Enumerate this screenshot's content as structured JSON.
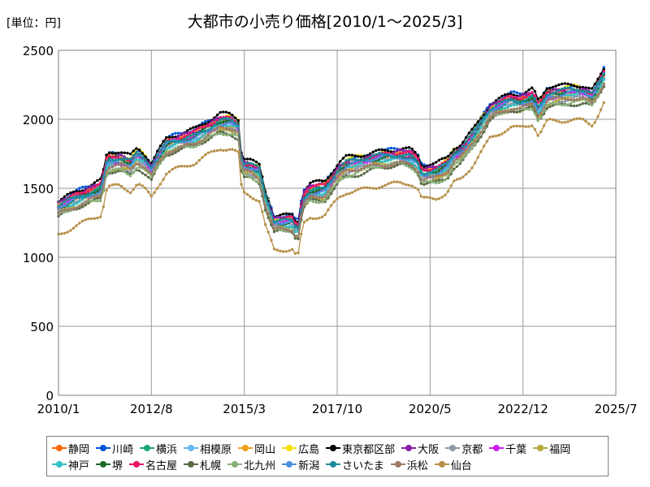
{
  "header": {
    "unit": "[単位：円]",
    "title": "大都市の小売り価格[2010/1～2025/3]"
  },
  "colors": {
    "grid": "#9a9a9a",
    "axis": "#7f7f7f"
  },
  "chart_data": {
    "type": "line",
    "title": "大都市の小売り価格[2010/1～2025/3]",
    "unit_label": "[単位：円]",
    "ylim": [
      0,
      2500
    ],
    "y_ticks": [
      0,
      500,
      1000,
      1500,
      2000,
      2500
    ],
    "x_range": [
      2010.0,
      2025.5
    ],
    "x_ticks": [
      {
        "label": "2010/1",
        "t": 2010.0
      },
      {
        "label": "2012/8",
        "t": 2012.583
      },
      {
        "label": "2015/3",
        "t": 2015.167
      },
      {
        "label": "2017/10",
        "t": 2017.75
      },
      {
        "label": "2020/5",
        "t": 2020.333
      },
      {
        "label": "2022/12",
        "t": 2022.917
      },
      {
        "label": "2025/7",
        "t": 2025.5
      }
    ],
    "grid": true,
    "legend_position": "bottom",
    "base_profile": {
      "x": [
        2010.0,
        2010.4,
        2010.8,
        2011.2,
        2011.35,
        2011.7,
        2012.0,
        2012.2,
        2012.4,
        2012.6,
        2012.7,
        2013.0,
        2013.2,
        2013.5,
        2013.8,
        2014.0,
        2014.5,
        2014.8,
        2015.0,
        2015.1,
        2015.3,
        2015.6,
        2015.75,
        2016.0,
        2016.5,
        2016.65,
        2016.8,
        2017.0,
        2017.4,
        2017.8,
        2018.0,
        2018.5,
        2018.8,
        2019.0,
        2019.5,
        2019.8,
        2020.0,
        2020.1,
        2020.5,
        2020.8,
        2021.0,
        2021.2,
        2021.5,
        2021.8,
        2022.0,
        2022.4,
        2022.6,
        2022.8,
        2023.0,
        2023.2,
        2023.35,
        2023.6,
        2024.0,
        2024.3,
        2024.6,
        2024.85,
        2025.0,
        2025.2
      ],
      "y": [
        1350,
        1400,
        1440,
        1480,
        1680,
        1690,
        1660,
        1720,
        1680,
        1620,
        1680,
        1800,
        1820,
        1840,
        1860,
        1890,
        1960,
        1960,
        1930,
        1650,
        1640,
        1600,
        1420,
        1240,
        1240,
        1170,
        1410,
        1460,
        1470,
        1610,
        1650,
        1680,
        1700,
        1710,
        1720,
        1710,
        1660,
        1590,
        1600,
        1640,
        1720,
        1750,
        1850,
        1970,
        2050,
        2100,
        2120,
        2110,
        2120,
        2140,
        2050,
        2160,
        2170,
        2180,
        2180,
        2150,
        2220,
        2320
      ]
    },
    "series": [
      {
        "name": "静岡",
        "color": "#ff6600",
        "offset": 30
      },
      {
        "name": "川崎",
        "color": "#0055dd",
        "offset": 60
      },
      {
        "name": "横浜",
        "color": "#19a874",
        "offset": 20
      },
      {
        "name": "相模原",
        "color": "#66b8f0",
        "offset": 0
      },
      {
        "name": "岡山",
        "color": "#f0a018",
        "offset": -10
      },
      {
        "name": "広島",
        "color": "#f8e000",
        "offset": 50
      },
      {
        "name": "東京都区部",
        "color": "#000000",
        "offset": 70
      },
      {
        "name": "大阪",
        "color": "#8820a8",
        "offset": 40
      },
      {
        "name": "京都",
        "color": "#8c98a8",
        "offset": -20
      },
      {
        "name": "千葉",
        "color": "#cc22ee",
        "offset": 10
      },
      {
        "name": "福岡",
        "color": "#b8a838",
        "offset": -40
      },
      {
        "name": "神戸",
        "color": "#33c0c8",
        "offset": 0
      },
      {
        "name": "堺",
        "color": "#1b6b2a",
        "offset": 20
      },
      {
        "name": "名古屋",
        "color": "#ee1166",
        "offset": 40
      },
      {
        "name": "札幌",
        "color": "#5a6a48",
        "offset": -60
      },
      {
        "name": "北九州",
        "color": "#88b078",
        "offset": -50
      },
      {
        "name": "新潟",
        "color": "#4a90e0",
        "offset": 10
      },
      {
        "name": "さいたま",
        "color": "#1a8a9a",
        "offset": 30
      },
      {
        "name": "浜松",
        "color": "#9c7a6a",
        "offset": -30
      },
      {
        "name": "仙台",
        "color": "#b8904a",
        "offset": -180
      }
    ]
  }
}
